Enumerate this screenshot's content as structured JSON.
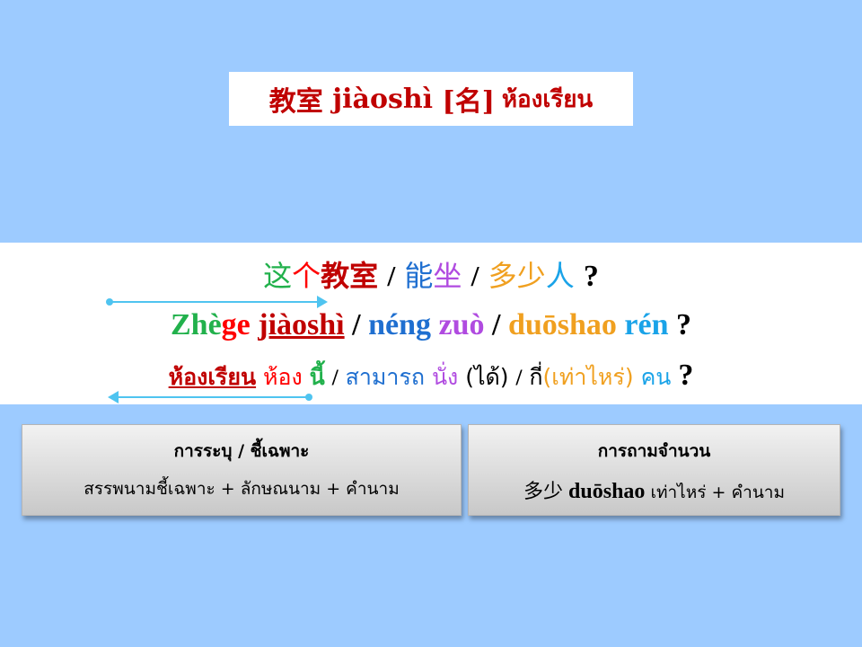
{
  "title": {
    "hanzi": "教室",
    "pinyin": "jiàoshì",
    "pos": "[名]",
    "thai": "ห้องเรียน"
  },
  "sentence": {
    "hanzi": [
      "这",
      "个",
      "教室",
      "/",
      "能",
      "坐",
      "/",
      "多",
      "少",
      "人",
      "?"
    ],
    "pinyin": [
      "Zhè",
      "ge",
      "jiàoshì",
      "/",
      "néng",
      "zuò",
      "/",
      "duōshao",
      "rén",
      "?"
    ],
    "thai": [
      "ห้องเรียน",
      "ห้อง",
      "นี้",
      "/",
      "สามารถ",
      "นั่ง",
      "(ได้)",
      "/",
      "กี่",
      "(เท่าไหร่)",
      "คน",
      "?"
    ]
  },
  "boxes": [
    {
      "heading": "การระบุ / ชี้เฉพาะ",
      "body": "สรรพนามชี้เฉพาะ  + ลักษณนาม + คำนาม"
    },
    {
      "heading": "การถามจำนวน",
      "body_hanzi": "多少",
      "body_pinyin": "duōshao",
      "body_thai": "เท่าไหร่ + คำนาม"
    }
  ],
  "colors": {
    "background": "#9dcbff",
    "title_red": "#c00000",
    "green": "#22b14c",
    "red": "#ff0000",
    "maroon": "#c00000",
    "purple": "#b04be0",
    "orange": "#f0a020",
    "sky": "#1aa3e8",
    "blue": "#1f6fd0",
    "arrow": "#4fc4f0"
  }
}
